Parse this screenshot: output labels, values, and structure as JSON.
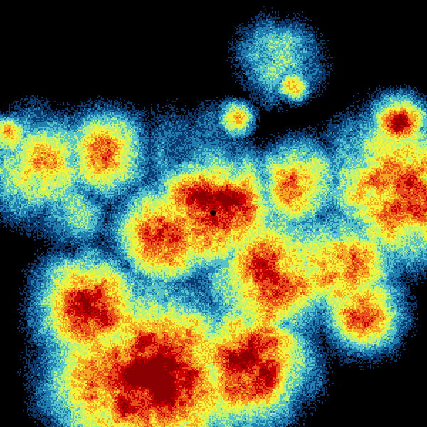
{
  "image": {
    "kind": "weather-radar-reflectivity",
    "background": "#000000",
    "colormap": [
      "#000000",
      "#0b3a6e",
      "#1f7fb0",
      "#55c3c8",
      "#b8f07a",
      "#f2f23a",
      "#f5a623",
      "#e8501a",
      "#c80000",
      "#8b0000"
    ]
  }
}
